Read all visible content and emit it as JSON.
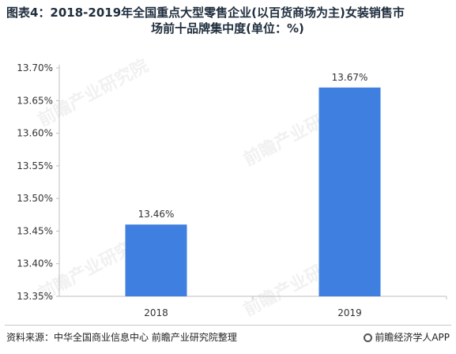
{
  "title_line1": "图表4：2018-2019年全国重点大型零售企业(以百货商场为主)女装销售市",
  "title_line2": "场前十品牌集中度(单位：%)",
  "source": "资料来源：中华全国商业信息中心  前瞻产业研究院整理",
  "brand": "前瞻经济学人APP",
  "watermark": "前瞻产业研究院",
  "colors": {
    "bar": "#3f7fe0",
    "axis": "#bfbfbf",
    "text": "#333333"
  },
  "chart_data": {
    "type": "bar",
    "categories": [
      "2018",
      "2019"
    ],
    "values": [
      13.46,
      13.67
    ],
    "data_labels": [
      "13.46%",
      "13.67%"
    ],
    "ylim": [
      13.35,
      13.7
    ],
    "yticks": [
      "13.70%",
      "13.65%",
      "13.60%",
      "13.55%",
      "13.50%",
      "13.45%",
      "13.40%",
      "13.35%"
    ],
    "grid": false
  }
}
